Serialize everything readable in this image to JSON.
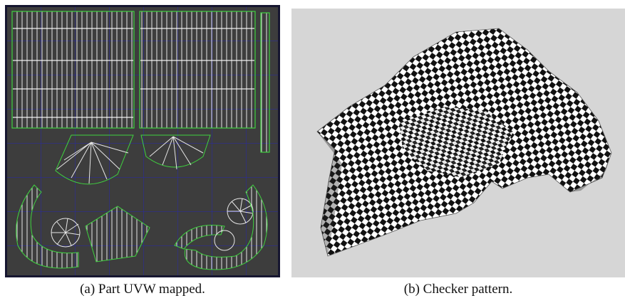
{
  "figure": {
    "panels": [
      {
        "caption": "(a) Part UVW mapped."
      },
      {
        "caption": "(b) Checker pattern."
      }
    ]
  }
}
